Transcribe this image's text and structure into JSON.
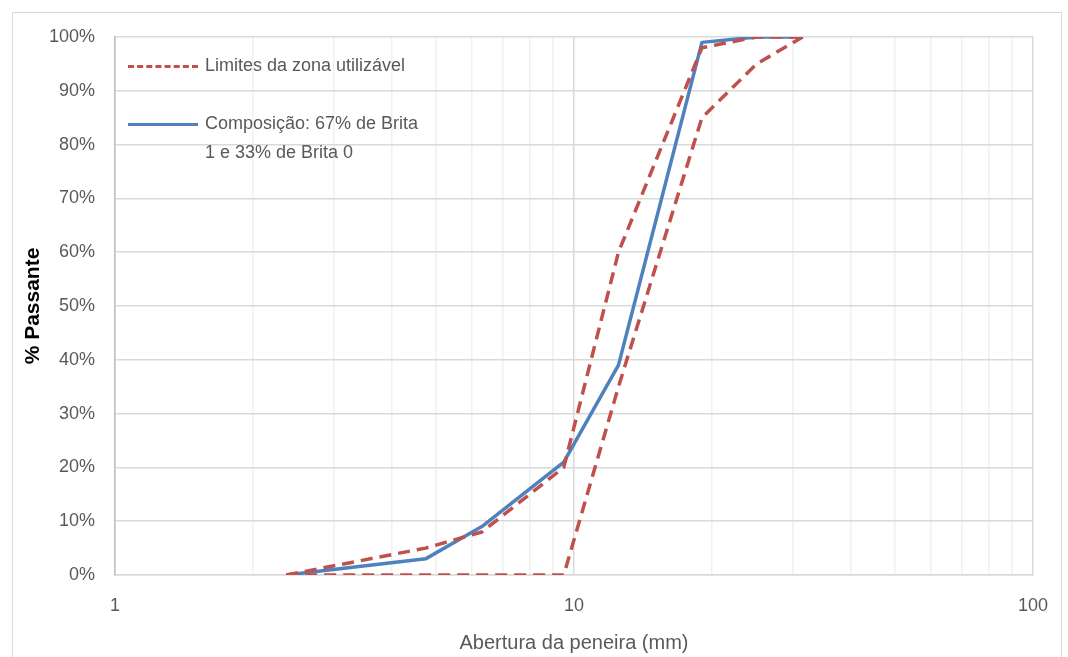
{
  "chart_data": {
    "type": "line",
    "xlabel": "Abertura da peneira (mm)",
    "ylabel": "% Passante",
    "x": [
      2.36,
      4.75,
      6.3,
      9.5,
      12.5,
      19,
      25,
      31.5
    ],
    "series": [
      {
        "name": "Limites da zona utilizável",
        "color": "#c0504d",
        "line_style": "dashed",
        "values": [
          0,
          5,
          8,
          20,
          60,
          98,
          100,
          100
        ]
      },
      {
        "color": "#c0504d",
        "line_style": "dashed",
        "values": [
          0,
          0,
          0,
          0,
          35,
          85,
          95,
          100
        ]
      },
      {
        "name": "Composição: 67% de Brita 1 e 33% de Brita 0",
        "color": "#4f81bd",
        "line_style": "solid",
        "values": [
          0,
          3,
          9,
          21,
          39,
          99,
          100,
          100
        ]
      }
    ],
    "xlim": [
      1,
      100
    ],
    "xticks": [
      1,
      {
        "value": 2,
        "label": null
      },
      {
        "value": 3,
        "label": null
      },
      {
        "value": 4,
        "label": null
      },
      {
        "value": 5,
        "label": null
      },
      {
        "value": 6,
        "label": null
      },
      {
        "value": 7,
        "label": null
      },
      {
        "value": 8,
        "label": null
      },
      {
        "value": 9,
        "label": null
      },
      10,
      {
        "value": 20,
        "label": null
      },
      {
        "value": 30,
        "label": null
      },
      {
        "value": 40,
        "label": null
      },
      {
        "value": 50,
        "label": null
      },
      {
        "value": 60,
        "label": null
      },
      {
        "value": 70,
        "label": null
      },
      {
        "value": 80,
        "label": null
      },
      {
        "value": 90,
        "label": null
      },
      100
    ],
    "ylim": [
      0,
      100
    ],
    "yticks": [
      {
        "value": 0,
        "label": "0%"
      },
      {
        "value": 10,
        "label": "10%"
      },
      {
        "value": 20,
        "label": "20%"
      },
      {
        "value": 30,
        "label": "30%"
      },
      {
        "value": 40,
        "label": "40%"
      },
      {
        "value": 50,
        "label": "50%"
      },
      {
        "value": 60,
        "label": "60%"
      },
      {
        "value": 70,
        "label": "70%"
      },
      {
        "value": 80,
        "label": "80%"
      },
      {
        "value": 90,
        "label": "90%"
      },
      {
        "value": 100,
        "label": "100%"
      }
    ],
    "log": "x",
    "grid": true,
    "legend": "top left",
    "marker": "none"
  }
}
